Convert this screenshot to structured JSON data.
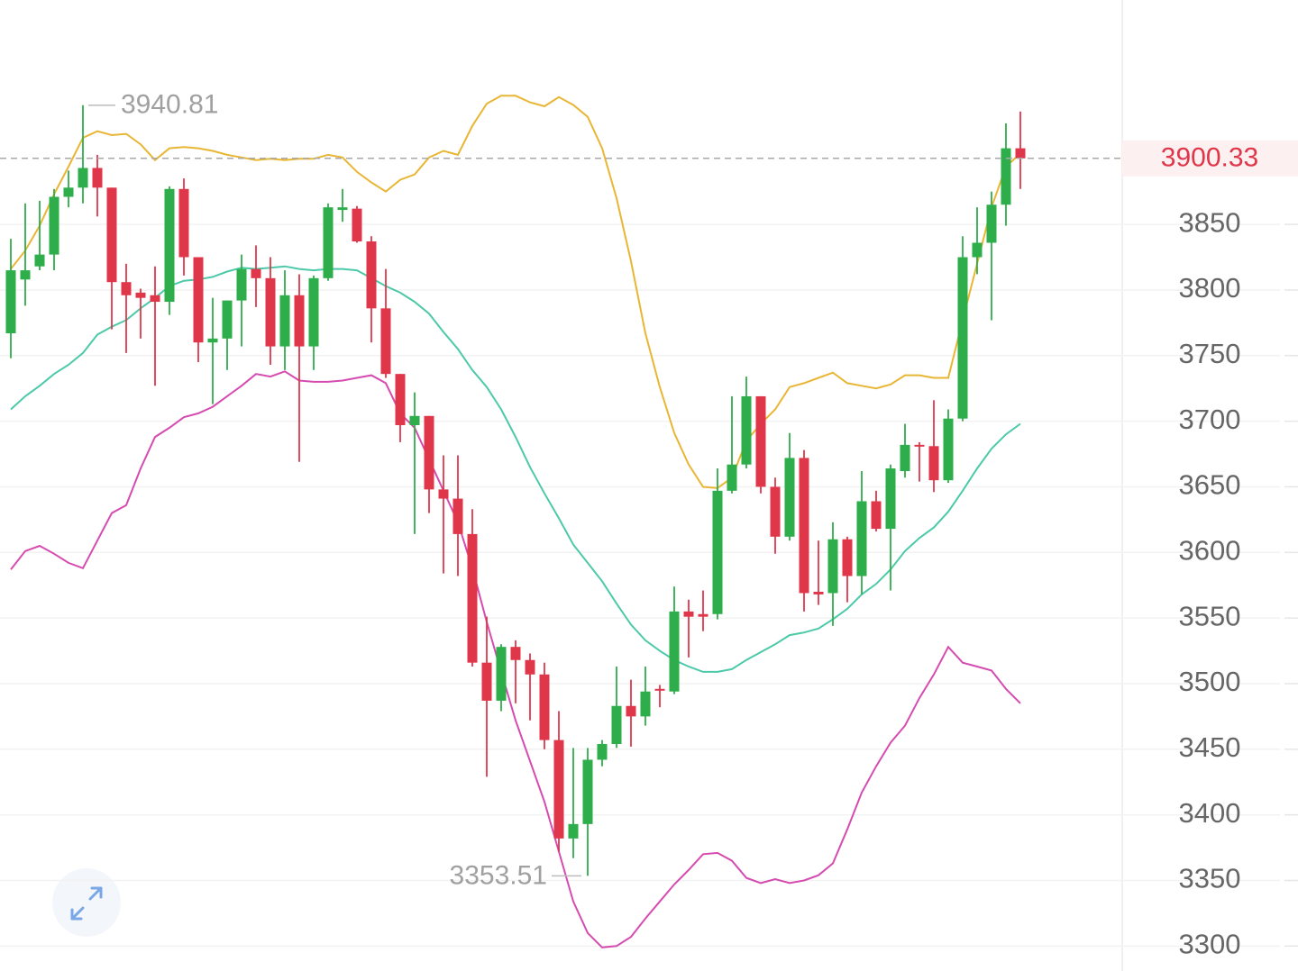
{
  "chart_data": {
    "type": "candlestick",
    "ylim": [
      3281,
      4021
    ],
    "yticks": [
      3300,
      3350,
      3400,
      3450,
      3500,
      3550,
      3600,
      3650,
      3700,
      3750,
      3800,
      3850
    ],
    "grid": true,
    "up_color": "#2ead4b",
    "down_color": "#e0364a",
    "open": [
      3767,
      3808,
      3818,
      3827,
      3871,
      3878,
      3893,
      3878,
      3806,
      3798,
      3796,
      3791,
      3877,
      3825,
      3760,
      3763,
      3792,
      3816,
      3809,
      3757,
      3796,
      3757,
      3809,
      3861,
      3862,
      3837,
      3786,
      3736,
      3697,
      3704,
      3648,
      3641,
      3614,
      3516,
      3487,
      3528,
      3518,
      3507,
      3457,
      3382,
      3393,
      3442,
      3454,
      3483,
      3475,
      3496,
      3494,
      3555,
      3553,
      3553,
      3647,
      3667,
      3719,
      3650,
      3612,
      3672,
      3570,
      3569,
      3610,
      3582,
      3639,
      3618,
      3662,
      3682,
      3681,
      3655,
      3702,
      3825,
      3836,
      3865,
      3908
    ],
    "high": [
      3839,
      3866,
      3868,
      3877,
      3891,
      3940.81,
      3903,
      3878,
      3820,
      3801,
      3818,
      3879,
      3885,
      3825,
      3794,
      3792,
      3827,
      3834,
      3825,
      3815,
      3812,
      3811,
      3866,
      3877,
      3864,
      3841,
      3816,
      3736,
      3722,
      3704,
      3674,
      3674,
      3633,
      3551,
      3530,
      3533,
      3523,
      3516,
      3479,
      3451,
      3451,
      3457,
      3513,
      3503,
      3513,
      3499,
      3574,
      3564,
      3571,
      3664,
      3719,
      3734,
      3719,
      3657,
      3691,
      3678,
      3609,
      3623,
      3612,
      3662,
      3647,
      3667,
      3698,
      3684,
      3716,
      3709,
      3841,
      3863,
      3875,
      3927,
      3936
    ],
    "low": [
      3748,
      3788,
      3815,
      3815,
      3863,
      3866,
      3856,
      3770,
      3752,
      3763,
      3727,
      3781,
      3811,
      3745,
      3713,
      3739,
      3757,
      3787,
      3743,
      3739,
      3669,
      3739,
      3807,
      3852,
      3836,
      3760,
      3733,
      3684,
      3614,
      3630,
      3584,
      3582,
      3513,
      3429,
      3479,
      3485,
      3472,
      3450,
      3372,
      3367,
      3353.51,
      3437,
      3451,
      3452,
      3468,
      3482,
      3492,
      3520,
      3540,
      3549,
      3645,
      3664,
      3645,
      3599,
      3609,
      3555,
      3560,
      3544,
      3562,
      3568,
      3616,
      3571,
      3657,
      3654,
      3646,
      3653,
      3700,
      3812,
      3777,
      3849,
      3877
    ],
    "close": [
      3815,
      3815,
      3827,
      3871,
      3878,
      3893,
      3878,
      3806,
      3796,
      3794,
      3791,
      3877,
      3825,
      3760,
      3763,
      3792,
      3816,
      3809,
      3757,
      3796,
      3757,
      3809,
      3863,
      3863,
      3837,
      3786,
      3736,
      3697,
      3704,
      3648,
      3641,
      3614,
      3516,
      3487,
      3528,
      3518,
      3507,
      3457,
      3382,
      3393,
      3442,
      3454,
      3483,
      3475,
      3494,
      3495,
      3555,
      3551,
      3551,
      3647,
      3667,
      3719,
      3650,
      3612,
      3672,
      3569,
      3568,
      3610,
      3582,
      3639,
      3618,
      3664,
      3682,
      3681,
      3655,
      3702,
      3825,
      3836,
      3865,
      3908,
      3900.33
    ],
    "lines": [
      {
        "color": "#e8b634",
        "values": [
          3816,
          3830,
          3849,
          3873,
          3894,
          3916,
          3921,
          3918,
          3919,
          3911,
          3899,
          3908,
          3909,
          3908,
          3906,
          3903,
          3901,
          3899,
          3900,
          3899,
          3900,
          3900,
          3903,
          3901,
          3890,
          3882,
          3875,
          3884,
          3888,
          3901,
          3906,
          3903,
          3925,
          3942,
          3948,
          3948,
          3943,
          3940,
          3947,
          3941,
          3932,
          3908,
          3870,
          3822,
          3767,
          3726,
          3691,
          3667,
          3650,
          3649,
          3657,
          3685,
          3698,
          3709,
          3726,
          3729,
          3733,
          3737,
          3729,
          3727,
          3725,
          3728,
          3735,
          3735,
          3733,
          3733,
          3777,
          3820,
          3863,
          3894,
          3904
        ]
      },
      {
        "color": "#4cc9a8",
        "values": [
          3709,
          3719,
          3727,
          3736,
          3743,
          3752,
          3766,
          3772,
          3777,
          3786,
          3794,
          3803,
          3807,
          3808,
          3810,
          3814,
          3817,
          3816,
          3817,
          3818,
          3816,
          3815,
          3816,
          3816,
          3815,
          3809,
          3803,
          3798,
          3791,
          3782,
          3768,
          3755,
          3739,
          3726,
          3709,
          3688,
          3665,
          3645,
          3626,
          3606,
          3592,
          3578,
          3561,
          3545,
          3533,
          3525,
          3518,
          3513,
          3509,
          3509,
          3511,
          3518,
          3524,
          3530,
          3537,
          3539,
          3542,
          3549,
          3557,
          3568,
          3576,
          3587,
          3601,
          3611,
          3619,
          3631,
          3647,
          3664,
          3679,
          3690,
          3698
        ]
      },
      {
        "color": "#d64bb0",
        "values": [
          3587,
          3601,
          3605,
          3599,
          3592,
          3588,
          3609,
          3630,
          3636,
          3664,
          3688,
          3695,
          3703,
          3706,
          3711,
          3719,
          3727,
          3736,
          3734,
          3738,
          3731,
          3730,
          3730,
          3731,
          3733,
          3735,
          3729,
          3706,
          3695,
          3671,
          3647,
          3623,
          3588,
          3547,
          3509,
          3472,
          3441,
          3410,
          3372,
          3334,
          3310,
          3299,
          3300,
          3307,
          3321,
          3334,
          3347,
          3358,
          3370,
          3371,
          3365,
          3352,
          3348,
          3351,
          3348,
          3350,
          3354,
          3363,
          3389,
          3417,
          3437,
          3455,
          3468,
          3489,
          3507,
          3528,
          3516,
          3513,
          3510,
          3496,
          3485
        ]
      }
    ]
  }
}
